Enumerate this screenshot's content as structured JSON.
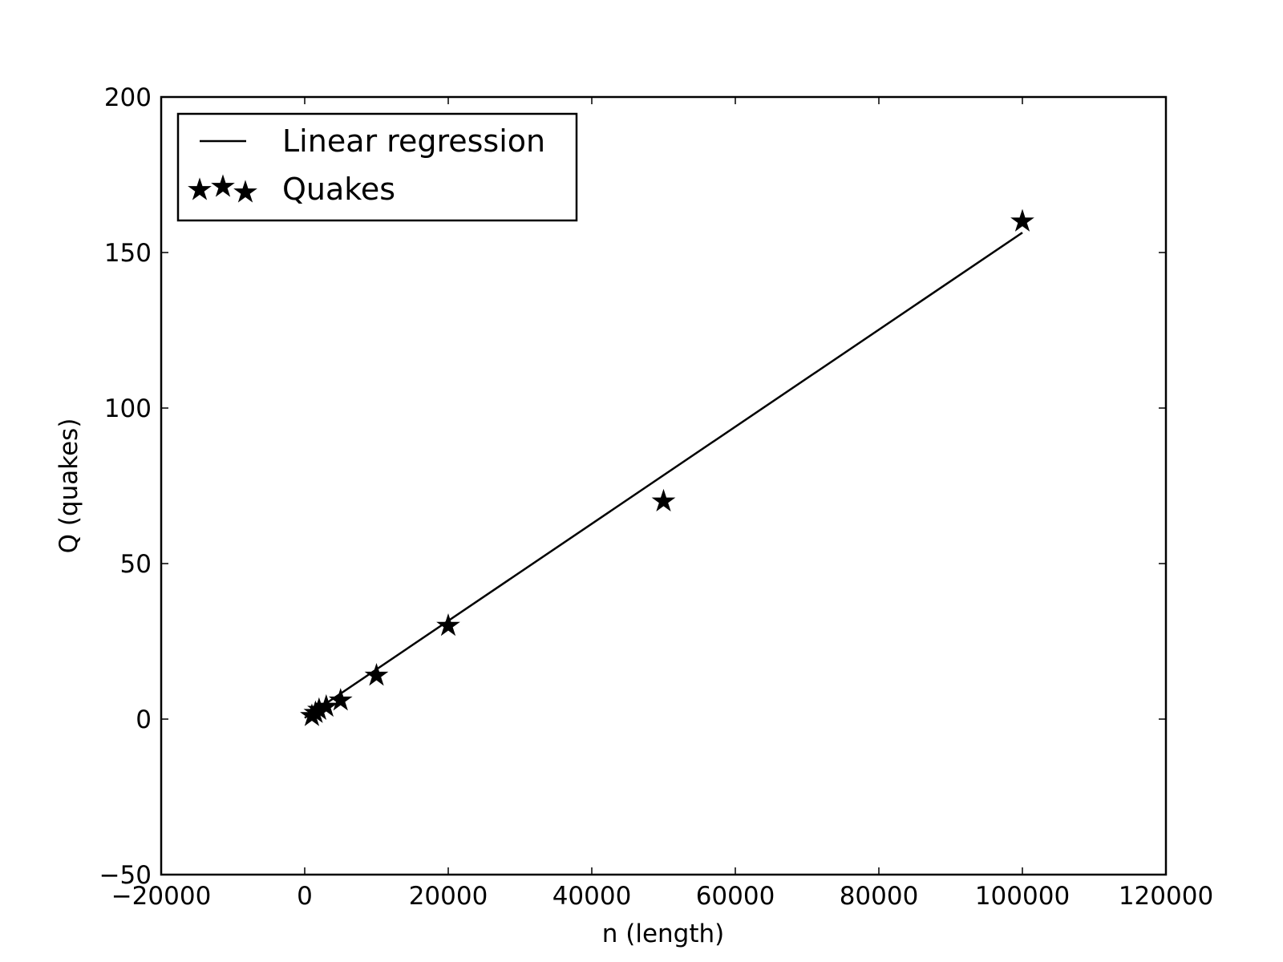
{
  "chart_data": {
    "type": "scatter",
    "title": "",
    "xlabel": "n (length)",
    "ylabel": "Q (quakes)",
    "xlim": [
      -20000,
      120000
    ],
    "ylim": [
      -50,
      200
    ],
    "xticks": [
      -20000,
      0,
      20000,
      40000,
      60000,
      80000,
      100000,
      120000
    ],
    "yticks": [
      -50,
      0,
      50,
      100,
      150,
      200
    ],
    "xtick_labels": [
      "−20000",
      "0",
      "20000",
      "40000",
      "60000",
      "80000",
      "100000",
      "120000"
    ],
    "ytick_labels": [
      "−50",
      "0",
      "50",
      "100",
      "150",
      "200"
    ],
    "grid": false,
    "legend": {
      "placement": "top-left",
      "entries": [
        "Linear regression",
        "Quakes"
      ]
    },
    "series": [
      {
        "name": "Linear regression",
        "kind": "line",
        "color": "#000000",
        "x": [
          0,
          100000
        ],
        "y": [
          0.4,
          156.4
        ]
      },
      {
        "name": "Quakes",
        "kind": "scatter",
        "marker": "star",
        "color": "#000000",
        "x": [
          1000,
          1500,
          2000,
          3000,
          5000,
          10000,
          20000,
          50000,
          100000
        ],
        "y": [
          1,
          2,
          3,
          4,
          6,
          14,
          30,
          70,
          160
        ]
      }
    ]
  }
}
